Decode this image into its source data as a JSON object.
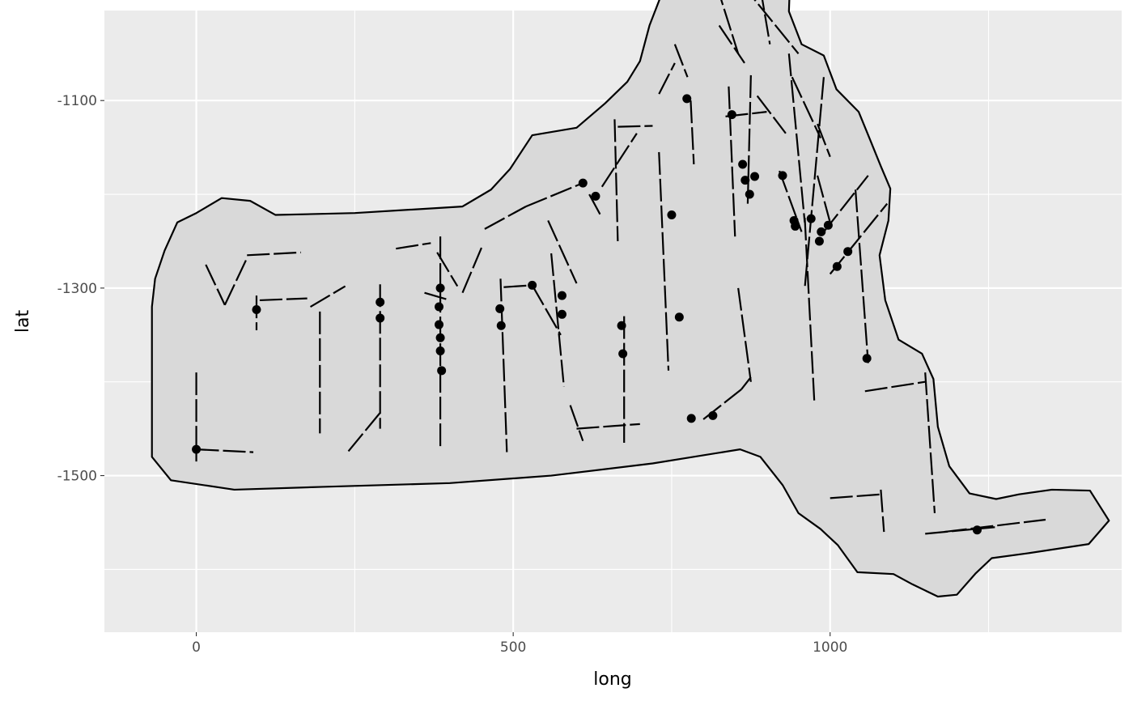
{
  "chart_data": {
    "type": "scatter",
    "title": "",
    "xlabel": "long",
    "ylabel": "lat",
    "xlim": [
      -145,
      1460
    ],
    "ylim": [
      -1667,
      -1004
    ],
    "grid": true,
    "x_ticks": [
      {
        "value": 0,
        "label": "0"
      },
      {
        "value": 500,
        "label": "500"
      },
      {
        "value": 1000,
        "label": "1000"
      }
    ],
    "y_ticks": [
      {
        "value": -1100,
        "label": "-1100"
      },
      {
        "value": -1300,
        "label": "-1300"
      },
      {
        "value": -1500,
        "label": "-1500"
      }
    ],
    "x_minor": [
      -250,
      250,
      750,
      1250
    ],
    "y_minor": [
      -1000,
      -1200,
      -1400,
      -1600
    ],
    "colors": {
      "panel": "#ebebeb",
      "grid": "#ffffff",
      "region_fill": "#d9d9d9",
      "line": "#000000",
      "point": "#000000"
    },
    "region_outline": [
      [
        -70,
        -1320
      ],
      [
        -65,
        -1290
      ],
      [
        -50,
        -1260
      ],
      [
        -30,
        -1230
      ],
      [
        0,
        -1220
      ],
      [
        40,
        -1204
      ],
      [
        85,
        -1207
      ],
      [
        125,
        -1222
      ],
      [
        250,
        -1220
      ],
      [
        420,
        -1213
      ],
      [
        465,
        -1195
      ],
      [
        495,
        -1173
      ],
      [
        530,
        -1137
      ],
      [
        600,
        -1129
      ],
      [
        645,
        -1103
      ],
      [
        680,
        -1080
      ],
      [
        700,
        -1058
      ],
      [
        715,
        -1020
      ],
      [
        735,
        -985
      ],
      [
        760,
        -968
      ],
      [
        800,
        -930
      ],
      [
        830,
        -920
      ],
      [
        850,
        -910
      ],
      [
        880,
        -893
      ],
      [
        930,
        -896
      ],
      [
        940,
        -910
      ],
      [
        935,
        -1005
      ],
      [
        955,
        -1040
      ],
      [
        990,
        -1052
      ],
      [
        1010,
        -1088
      ],
      [
        1045,
        -1112
      ],
      [
        1062,
        -1140
      ],
      [
        1080,
        -1170
      ],
      [
        1095,
        -1194
      ],
      [
        1092,
        -1228
      ],
      [
        1078,
        -1265
      ],
      [
        1087,
        -1313
      ],
      [
        1108,
        -1355
      ],
      [
        1145,
        -1370
      ],
      [
        1163,
        -1397
      ],
      [
        1170,
        -1448
      ],
      [
        1188,
        -1490
      ],
      [
        1220,
        -1519
      ],
      [
        1262,
        -1525
      ],
      [
        1298,
        -1520
      ],
      [
        1350,
        -1515
      ],
      [
        1410,
        -1516
      ],
      [
        1440,
        -1548
      ],
      [
        1408,
        -1573
      ],
      [
        1310,
        -1583
      ],
      [
        1255,
        -1588
      ],
      [
        1230,
        -1604
      ],
      [
        1200,
        -1627
      ],
      [
        1170,
        -1629
      ],
      [
        1130,
        -1616
      ],
      [
        1100,
        -1605
      ],
      [
        1043,
        -1603
      ],
      [
        1012,
        -1574
      ],
      [
        985,
        -1557
      ],
      [
        950,
        -1540
      ],
      [
        925,
        -1510
      ],
      [
        890,
        -1480
      ],
      [
        858,
        -1472
      ],
      [
        720,
        -1487
      ],
      [
        560,
        -1500
      ],
      [
        400,
        -1508
      ],
      [
        200,
        -1512
      ],
      [
        60,
        -1515
      ],
      [
        -40,
        -1505
      ],
      [
        -70,
        -1480
      ],
      [
        -70,
        -1320
      ]
    ],
    "segments": [
      [
        [
          0,
          -1390
        ],
        [
          0,
          -1485
        ]
      ],
      [
        [
          0,
          -1472
        ],
        [
          90,
          -1475
        ]
      ],
      [
        [
          15,
          -1275
        ],
        [
          45,
          -1318
        ]
      ],
      [
        [
          45,
          -1318
        ],
        [
          80,
          -1268
        ]
      ],
      [
        [
          80,
          -1265
        ],
        [
          165,
          -1262
        ]
      ],
      [
        [
          95,
          -1308
        ],
        [
          95,
          -1345
        ]
      ],
      [
        [
          100,
          -1313
        ],
        [
          175,
          -1311
        ]
      ],
      [
        [
          180,
          -1320
        ],
        [
          235,
          -1298
        ]
      ],
      [
        [
          195,
          -1325
        ],
        [
          195,
          -1455
        ]
      ],
      [
        [
          240,
          -1474
        ],
        [
          290,
          -1433
        ]
      ],
      [
        [
          290,
          -1296
        ],
        [
          290,
          -1450
        ]
      ],
      [
        [
          315,
          -1258
        ],
        [
          370,
          -1252
        ]
      ],
      [
        [
          360,
          -1305
        ],
        [
          400,
          -1313
        ]
      ],
      [
        [
          385,
          -1245
        ],
        [
          385,
          -1470
        ]
      ],
      [
        [
          380,
          -1262
        ],
        [
          412,
          -1298
        ]
      ],
      [
        [
          420,
          -1305
        ],
        [
          450,
          -1257
        ]
      ],
      [
        [
          480,
          -1290
        ],
        [
          490,
          -1475
        ]
      ],
      [
        [
          485,
          -1299
        ],
        [
          530,
          -1297
        ]
      ],
      [
        [
          530,
          -1297
        ],
        [
          575,
          -1350
        ]
      ],
      [
        [
          455,
          -1237
        ],
        [
          520,
          -1213
        ]
      ],
      [
        [
          520,
          -1213
        ],
        [
          610,
          -1188
        ]
      ],
      [
        [
          620,
          -1200
        ],
        [
          640,
          -1225
        ]
      ],
      [
        [
          555,
          -1228
        ],
        [
          600,
          -1295
        ]
      ],
      [
        [
          560,
          -1263
        ],
        [
          580,
          -1405
        ]
      ],
      [
        [
          590,
          -1425
        ],
        [
          610,
          -1463
        ]
      ],
      [
        [
          600,
          -1450
        ],
        [
          700,
          -1445
        ]
      ],
      [
        [
          640,
          -1192
        ],
        [
          695,
          -1135
        ]
      ],
      [
        [
          660,
          -1120
        ],
        [
          665,
          -1250
        ]
      ],
      [
        [
          665,
          -1128
        ],
        [
          720,
          -1127
        ]
      ],
      [
        [
          675,
          -1330
        ],
        [
          675,
          -1465
        ]
      ],
      [
        [
          730,
          -1155
        ],
        [
          745,
          -1388
        ]
      ],
      [
        [
          730,
          -1093
        ],
        [
          755,
          -1060
        ]
      ],
      [
        [
          755,
          -1040
        ],
        [
          775,
          -1075
        ]
      ],
      [
        [
          780,
          -1100
        ],
        [
          785,
          -1168
        ]
      ],
      [
        [
          800,
          -1440
        ],
        [
          860,
          -1408
        ]
      ],
      [
        [
          860,
          -1408
        ],
        [
          875,
          -1395
        ]
      ],
      [
        [
          820,
          -975
        ],
        [
          855,
          -1050
        ]
      ],
      [
        [
          825,
          -1020
        ],
        [
          865,
          -1060
        ]
      ],
      [
        [
          835,
          -1117
        ],
        [
          900,
          -1112
        ]
      ],
      [
        [
          840,
          -1085
        ],
        [
          850,
          -1245
        ]
      ],
      [
        [
          855,
          -1300
        ],
        [
          875,
          -1400
        ]
      ],
      [
        [
          860,
          -975
        ],
        [
          950,
          -1050
        ]
      ],
      [
        [
          875,
          -1073
        ],
        [
          870,
          -1210
        ]
      ],
      [
        [
          885,
          -1095
        ],
        [
          930,
          -1135
        ]
      ],
      [
        [
          890,
          -980
        ],
        [
          905,
          -1040
        ]
      ],
      [
        [
          920,
          -1175
        ],
        [
          955,
          -1240
        ]
      ],
      [
        [
          935,
          -1050
        ],
        [
          960,
          -1230
        ]
      ],
      [
        [
          960,
          -1225
        ],
        [
          975,
          -1420
        ]
      ],
      [
        [
          980,
          -1125
        ],
        [
          1000,
          -1160
        ]
      ],
      [
        [
          940,
          -1075
        ],
        [
          985,
          -1140
        ]
      ],
      [
        [
          990,
          -1075
        ],
        [
          960,
          -1300
        ]
      ],
      [
        [
          980,
          -1180
        ],
        [
          1000,
          -1230
        ]
      ],
      [
        [
          990,
          -1240
        ],
        [
          1060,
          -1180
        ]
      ],
      [
        [
          1000,
          -1285
        ],
        [
          1090,
          -1210
        ]
      ],
      [
        [
          1040,
          -1195
        ],
        [
          1060,
          -1380
        ]
      ],
      [
        [
          1055,
          -1410
        ],
        [
          1150,
          -1400
        ]
      ],
      [
        [
          1150,
          -1390
        ],
        [
          1165,
          -1540
        ]
      ],
      [
        [
          1000,
          -1524
        ],
        [
          1080,
          -1520
        ]
      ],
      [
        [
          1080,
          -1515
        ],
        [
          1085,
          -1560
        ]
      ],
      [
        [
          1150,
          -1562
        ],
        [
          1260,
          -1555
        ]
      ],
      [
        [
          1180,
          -1560
        ],
        [
          1340,
          -1547
        ]
      ]
    ],
    "points": [
      [
        0,
        -1472
      ],
      [
        95,
        -1323
      ],
      [
        290,
        -1315
      ],
      [
        290,
        -1332
      ],
      [
        385,
        -1300
      ],
      [
        383,
        -1320
      ],
      [
        383,
        -1339
      ],
      [
        385,
        -1353
      ],
      [
        385,
        -1367
      ],
      [
        387,
        -1388
      ],
      [
        479,
        -1322
      ],
      [
        481,
        -1340
      ],
      [
        530,
        -1297
      ],
      [
        577,
        -1308
      ],
      [
        577,
        -1328
      ],
      [
        610,
        -1188
      ],
      [
        630,
        -1202
      ],
      [
        671,
        -1340
      ],
      [
        673,
        -1370
      ],
      [
        750,
        -1222
      ],
      [
        762,
        -1331
      ],
      [
        774,
        -1098
      ],
      [
        781,
        -1439
      ],
      [
        815,
        -1436
      ],
      [
        845,
        -1115
      ],
      [
        862,
        -1168
      ],
      [
        866,
        -1185
      ],
      [
        873,
        -1200
      ],
      [
        881,
        -1181
      ],
      [
        925,
        -1180
      ],
      [
        943,
        -1228
      ],
      [
        945,
        -1234
      ],
      [
        970,
        -1226
      ],
      [
        983,
        -1250
      ],
      [
        986,
        -1240
      ],
      [
        997,
        -1233
      ],
      [
        1011,
        -1277
      ],
      [
        1028,
        -1261
      ],
      [
        1058,
        -1375
      ],
      [
        1232,
        -1558
      ]
    ]
  }
}
